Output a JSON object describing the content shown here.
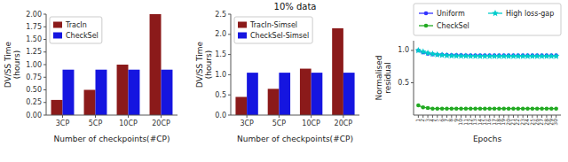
{
  "chart_data": [
    {
      "type": "bar",
      "categories": [
        "3CP",
        "5CP",
        "10CP",
        "20CP"
      ],
      "series": [
        {
          "name": "TracIn",
          "color": "#8B1A1A",
          "values": [
            0.3,
            0.5,
            1.0,
            2.0
          ]
        },
        {
          "name": "CheckSel",
          "color": "#1515e0",
          "values": [
            0.9,
            0.9,
            0.9,
            0.9
          ]
        }
      ],
      "xlabel": "Number of checkpoints(#CP)",
      "ylabel": "DV/SS Time\n(hours)",
      "ylim": [
        0,
        2.0
      ],
      "yticks": [
        {
          "value": 0,
          "label": "0.00"
        },
        0.25,
        {
          "value": 0.5,
          "label": "0.50"
        },
        0.75,
        {
          "value": 1.0,
          "label": "1.00"
        },
        1.25,
        {
          "value": 1.5,
          "label": "1.50"
        },
        1.75,
        {
          "value": 2.0,
          "label": "2.00"
        }
      ],
      "legend": "upper left",
      "grid": false
    },
    {
      "type": "bar",
      "title": "10% data",
      "categories": [
        "3CP",
        "5CP",
        "10CP",
        "20CP"
      ],
      "series": [
        {
          "name": "TracIn-Simsel",
          "color": "#8B1A1A",
          "values": [
            0.45,
            0.65,
            1.15,
            2.15
          ]
        },
        {
          "name": "CheckSel-Simsel",
          "color": "#1515e0",
          "values": [
            1.05,
            1.05,
            1.05,
            1.05
          ]
        }
      ],
      "xlabel": "Number of checkpoints(#CP)",
      "ylabel": "DV/SS Time\n(hours)",
      "ylim": [
        0,
        2.5
      ],
      "yticks": [
        {
          "value": 0,
          "label": "0.0"
        },
        0.5,
        {
          "value": 1.0,
          "label": "1.0"
        },
        1.5,
        {
          "value": 2.0,
          "label": "2.0"
        },
        2.5
      ],
      "legend": "upper left",
      "grid": false
    },
    {
      "type": "line",
      "x": [
        1,
        2,
        3,
        4,
        5,
        6,
        7,
        8,
        9,
        10,
        11,
        12,
        13,
        14,
        15,
        16,
        17,
        18,
        19,
        20,
        21,
        22,
        23,
        24,
        25,
        26,
        27,
        28,
        29,
        30
      ],
      "series": [
        {
          "name": "Uniform",
          "color": "#3333ff",
          "marker": "circle",
          "values": [
            1.0,
            0.97,
            0.95,
            0.94,
            0.935,
            0.932,
            0.93,
            0.928,
            0.927,
            0.926,
            0.925,
            0.925,
            0.924,
            0.924,
            0.924,
            0.923,
            0.923,
            0.923,
            0.923,
            0.923,
            0.922,
            0.922,
            0.922,
            0.922,
            0.922,
            0.922,
            0.922,
            0.922,
            0.922,
            0.922
          ]
        },
        {
          "name": "High loss-gap",
          "color": "#00cccc",
          "marker": "star",
          "values": [
            1.0,
            0.98,
            0.96,
            0.945,
            0.935,
            0.928,
            0.922,
            0.918,
            0.916,
            0.914,
            0.913,
            0.912,
            0.912,
            0.911,
            0.911,
            0.911,
            0.91,
            0.91,
            0.91,
            0.91,
            0.91,
            0.91,
            0.91,
            0.91,
            0.91,
            0.91,
            0.91,
            0.91,
            0.91,
            0.91
          ]
        },
        {
          "name": "CheckSel",
          "color": "#22aa22",
          "marker": "circle",
          "values": [
            0.15,
            0.12,
            0.11,
            0.1,
            0.1,
            0.1,
            0.1,
            0.1,
            0.1,
            0.1,
            0.1,
            0.1,
            0.1,
            0.1,
            0.1,
            0.1,
            0.1,
            0.1,
            0.1,
            0.1,
            0.1,
            0.1,
            0.1,
            0.1,
            0.1,
            0.1,
            0.1,
            0.1,
            0.1,
            0.1
          ]
        }
      ],
      "xlabel": "Epochs",
      "ylabel": "Normalised\nresidual",
      "xlim": [
        0,
        31
      ],
      "xticks": [
        1,
        2,
        3,
        4,
        5,
        6,
        7,
        8,
        9,
        10,
        11,
        12,
        13,
        14,
        15,
        16,
        17,
        18,
        19,
        20,
        21,
        22,
        23,
        24,
        25,
        26,
        27,
        28,
        29,
        30
      ],
      "ylim": [
        0.0,
        1.15
      ],
      "yticks": [
        0.5,
        {
          "value": 1.0,
          "label": "1.0"
        }
      ],
      "legend": "top",
      "grid": false
    }
  ]
}
